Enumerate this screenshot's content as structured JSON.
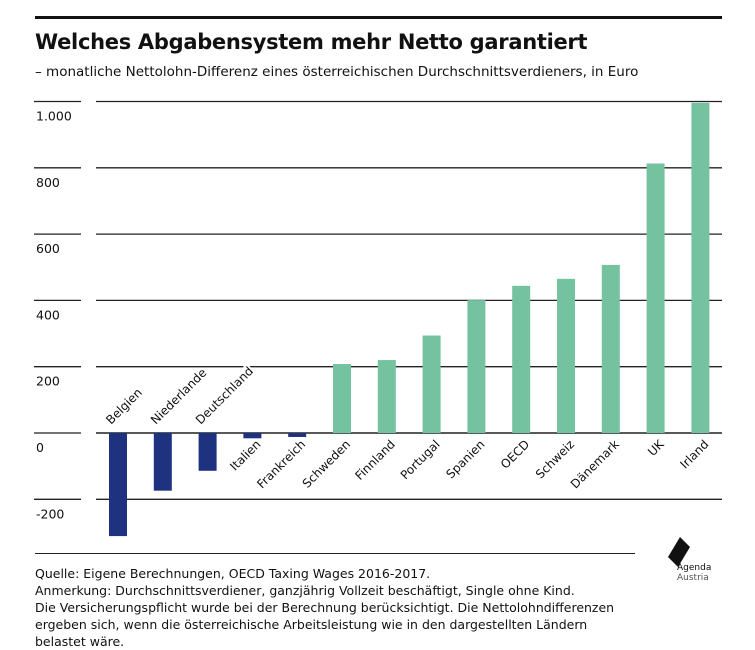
{
  "header": {
    "title": "Welches Abgabensystem mehr Netto garantiert",
    "subtitle": "– monatliche Nettolohn-Differenz eines österreichischen Durchschnittsverdieners, in Euro"
  },
  "chart_data": {
    "type": "bar",
    "title": "Welches Abgabensystem mehr Netto garantiert",
    "ylabel": "",
    "xlabel": "",
    "ylim": [
      -300,
      1000
    ],
    "yticks": [
      1000,
      800,
      600,
      400,
      200,
      0,
      -200
    ],
    "ytick_labels": [
      "1.000",
      "800",
      "600",
      "400",
      "200",
      "0",
      "-200"
    ],
    "grid": true,
    "categories": [
      "Belgien",
      "Niederlande",
      "Deutschland",
      "Italien",
      "Frankreich",
      "Schweden",
      "Finnland",
      "Portugal",
      "Spanien",
      "OECD",
      "Schweiz",
      "Dänemark",
      "UK",
      "Irland"
    ],
    "values": [
      -311,
      -174,
      -114,
      -16,
      -12,
      208,
      220,
      294,
      401,
      444,
      465,
      507,
      813,
      996
    ],
    "colors": {
      "negative": "#1f3280",
      "positive": "#74c29f"
    }
  },
  "footer": {
    "lines": [
      "Quelle: Eigene Berechnungen, OECD Taxing Wages 2016-2017.",
      "Anmerkung: Durchschnittsverdiener, ganzjährig Vollzeit beschäftigt, Single ohne Kind.",
      "Die Versicherungspflicht wurde bei der Berechnung berücksichtigt. Die Nettolohndifferenzen",
      "ergeben sich, wenn die österreichische Arbeitsleistung wie in den dargestellten Ländern",
      "belastet wäre."
    ],
    "logo": "Agenda Austria",
    "logo_line1": "Agenda",
    "logo_line2": "Austria"
  }
}
